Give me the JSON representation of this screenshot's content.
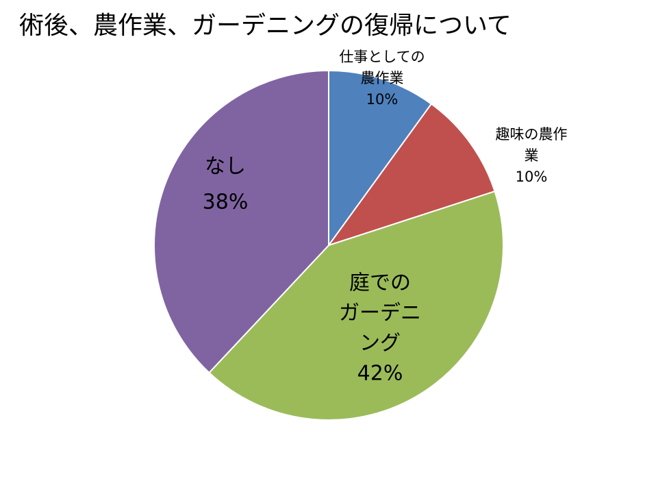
{
  "chart_data": {
    "type": "pie",
    "title": "術後、農作業、ガーデニングの復帰について",
    "slices": [
      {
        "label": "仕事としての農作業",
        "label_lines": [
          "仕事としての",
          "農作業"
        ],
        "value": 10,
        "value_label": "10%",
        "color": "#4F81BD"
      },
      {
        "label": "趣味の農作業",
        "label_lines": [
          "趣味の農作",
          "業"
        ],
        "value": 10,
        "value_label": "10%",
        "color": "#C0504D"
      },
      {
        "label": "庭でのガーデニング",
        "label_lines": [
          "庭での",
          "ガーデニ",
          "ング"
        ],
        "value": 42,
        "value_label": "42%",
        "color": "#9BBB59"
      },
      {
        "label": "なし",
        "label_lines": [
          "なし"
        ],
        "value": 38,
        "value_label": "38%",
        "color": "#8064A2"
      }
    ]
  }
}
